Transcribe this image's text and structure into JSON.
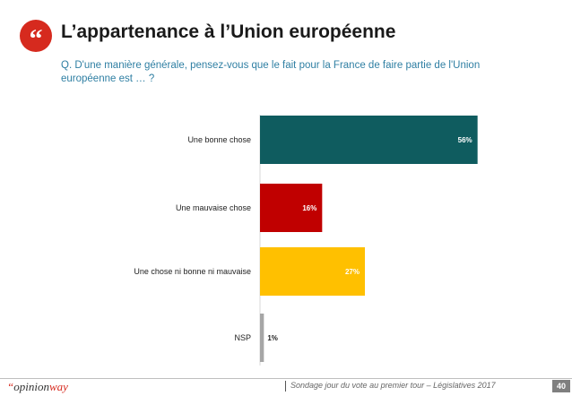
{
  "header": {
    "title": "L’appartenance à l’Union européenne",
    "question": "Q. D'une manière générale, pensez-vous que le fait pour la France de faire partie de l'Union européenne est … ?"
  },
  "chart_data": {
    "type": "bar",
    "orientation": "horizontal",
    "categories": [
      "Une bonne chose",
      "Une mauvaise chose",
      "Une chose ni bonne ni mauvaise",
      "NSP"
    ],
    "values": [
      56,
      16,
      27,
      1
    ],
    "value_labels": [
      "56%",
      "16%",
      "27%",
      "1%"
    ],
    "colors": [
      "#0f5c5f",
      "#c00000",
      "#ffc000",
      "#a6a6a6"
    ],
    "xlim": [
      0,
      60
    ],
    "grid": false,
    "legend": "none"
  },
  "footer": {
    "logo_quote": "“",
    "logo_part1": "opinion",
    "logo_part2": "way",
    "source": "Sondage jour du vote au premier tour – Législatives 2017",
    "page": "40"
  }
}
